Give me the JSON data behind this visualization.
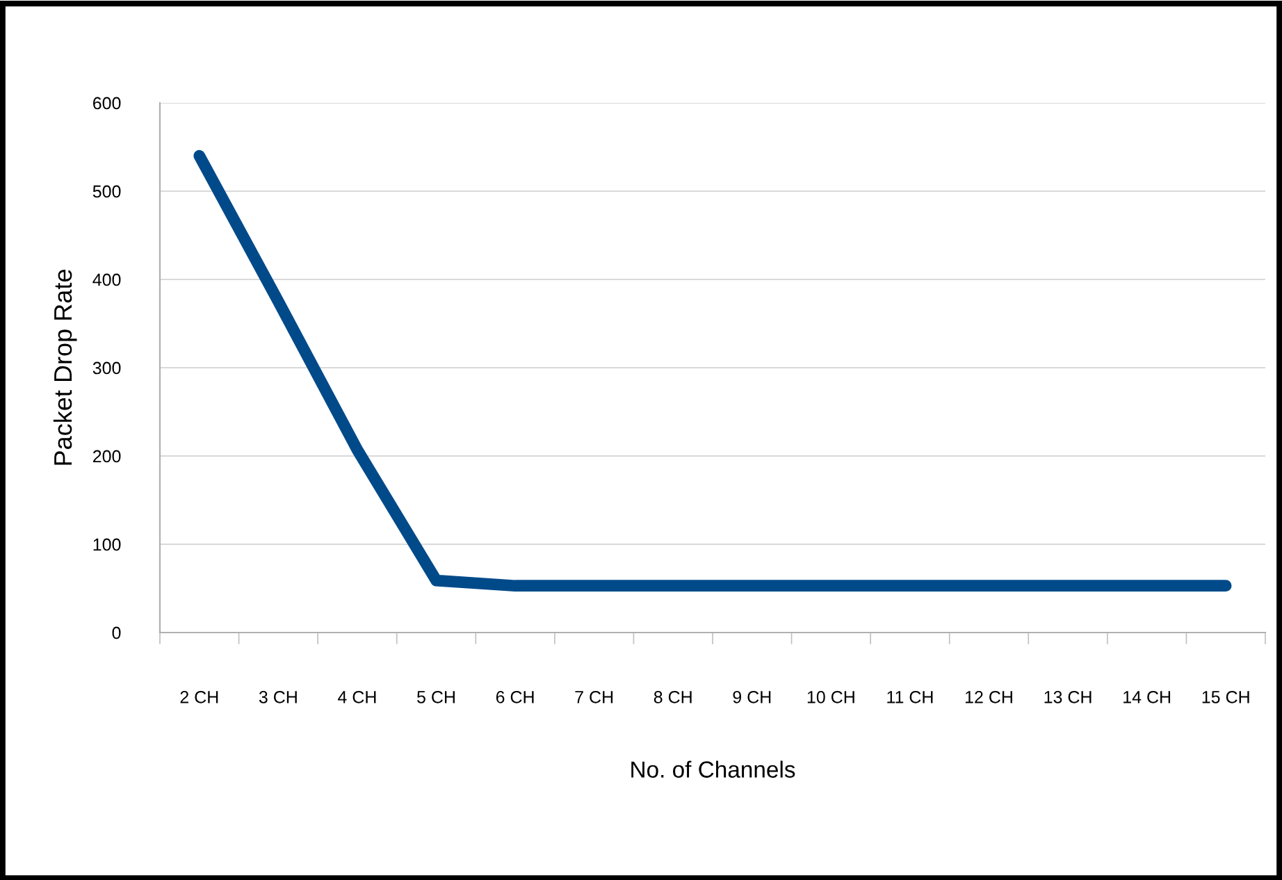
{
  "chart_data": {
    "type": "line",
    "xlabel": "No. of Channels",
    "ylabel": "Packet Drop Rate",
    "categories": [
      "2 CH",
      "3 CH",
      "4 CH",
      "5 CH",
      "6 CH",
      "7 CH",
      "8 CH",
      "9 CH",
      "10 CH",
      "11 CH",
      "12 CH",
      "13 CH",
      "14 CH",
      "15 CH"
    ],
    "series": [
      {
        "color": "#004a8a",
        "values": [
          540,
          375,
          207,
          59,
          53,
          53,
          53,
          53,
          53,
          53,
          53,
          53,
          53,
          53
        ]
      }
    ],
    "ylim": [
      0,
      600
    ],
    "yticks": [
      0,
      100,
      200,
      300,
      400,
      500,
      600
    ],
    "grid": "y",
    "marker": "none",
    "line_style": "solid"
  }
}
